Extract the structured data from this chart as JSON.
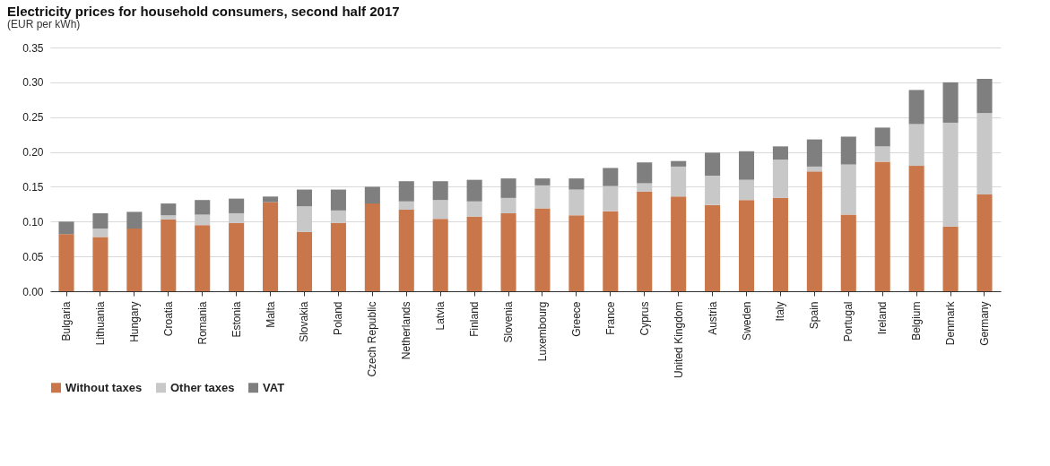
{
  "chart_data": {
    "type": "bar",
    "title": "Electricity prices for household consumers, second half 2017",
    "subtitle": "(EUR per kWh)",
    "categories": [
      "Bulgaria",
      "Lithuania",
      "Hungary",
      "Croatia",
      "Romania",
      "Estonia",
      "Malta",
      "Slovakia",
      "Poland",
      "Czech Republic",
      "Netherlands",
      "Latvia",
      "Finland",
      "Slovenia",
      "Luxembourg",
      "Greece",
      "France",
      "Cyprus",
      "United Kingdom",
      "Austria",
      "Sweden",
      "Italy",
      "Spain",
      "Portugal",
      "Ireland",
      "Belgium",
      "Denmark",
      "Germany"
    ],
    "stacked": true,
    "series": [
      {
        "name": "Without taxes",
        "color": "#c8764a",
        "values": [
          0.082,
          0.078,
          0.09,
          0.103,
          0.095,
          0.098,
          0.128,
          0.085,
          0.098,
          0.126,
          0.117,
          0.104,
          0.107,
          0.112,
          0.119,
          0.109,
          0.115,
          0.143,
          0.136,
          0.124,
          0.131,
          0.134,
          0.172,
          0.11,
          0.186,
          0.18,
          0.093,
          0.139
        ]
      },
      {
        "name": "Other taxes",
        "color": "#c8c8c8",
        "values": [
          0,
          0.012,
          0,
          0.006,
          0.015,
          0.014,
          0,
          0.037,
          0.018,
          0,
          0.012,
          0.027,
          0.022,
          0.022,
          0.033,
          0.037,
          0.036,
          0.012,
          0.043,
          0.042,
          0.029,
          0.055,
          0.007,
          0.072,
          0.022,
          0.06,
          0.149,
          0.117
        ]
      },
      {
        "name": "VAT",
        "color": "#7f7f7f",
        "values": [
          0.018,
          0.022,
          0.024,
          0.017,
          0.021,
          0.021,
          0.008,
          0.024,
          0.03,
          0.024,
          0.029,
          0.027,
          0.031,
          0.028,
          0.01,
          0.016,
          0.026,
          0.03,
          0.008,
          0.033,
          0.041,
          0.019,
          0.039,
          0.04,
          0.027,
          0.049,
          0.058,
          0.049
        ]
      }
    ],
    "ylim": [
      0,
      0.35
    ],
    "yticks": [
      {
        "value": 0,
        "label": "0.00"
      },
      0.05,
      {
        "value": 0.1,
        "label": "0.10"
      },
      0.15,
      {
        "value": 0.2,
        "label": "0.20"
      },
      0.25,
      {
        "value": 0.3,
        "label": "0.30"
      },
      0.35
    ],
    "grid": "y",
    "legend": "bottom"
  }
}
